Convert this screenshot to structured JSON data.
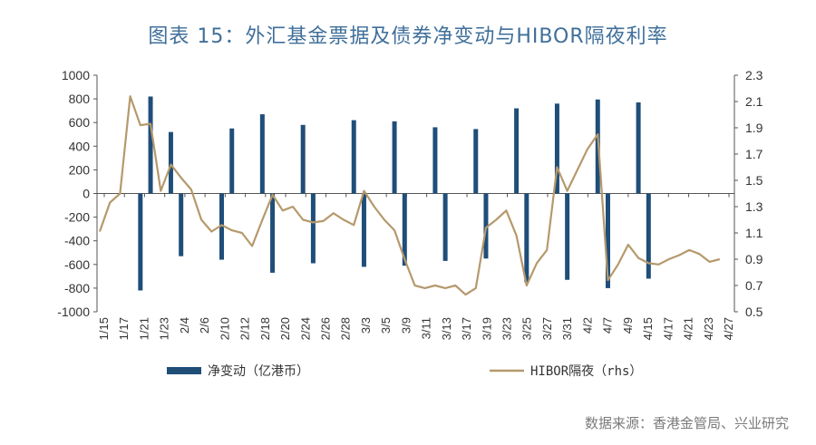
{
  "title": "图表 15：外汇基金票据及债券净变动与HIBOR隔夜利率",
  "source": "数据来源：香港金管局、兴业研究",
  "colors": {
    "bar": "#1f4e79",
    "line": "#b5996c",
    "title": "#3f6f9a"
  },
  "chart_data": {
    "type": "bar+line",
    "left_axis": {
      "ylim": [
        -1000,
        1000
      ],
      "ticks": [
        "1000",
        "800",
        "600",
        "400",
        "200",
        "0",
        "-200",
        "-400",
        "-600",
        "-800",
        "-1000"
      ]
    },
    "right_axis": {
      "ylim": [
        0.5,
        2.3
      ],
      "ticks": [
        "2.3",
        "2.1",
        "1.9",
        "1.7",
        "1.5",
        "1.3",
        "1.1",
        "0.9",
        "0.7",
        "0.5"
      ]
    },
    "x_ticks": [
      "1/15",
      "1/17",
      "1/21",
      "1/23",
      "2/4",
      "2/6",
      "2/10",
      "2/12",
      "2/18",
      "2/20",
      "2/24",
      "2/26",
      "2/28",
      "3/3",
      "3/5",
      "3/9",
      "3/11",
      "3/13",
      "3/17",
      "3/19",
      "3/23",
      "3/25",
      "3/27",
      "3/31",
      "4/2",
      "4/7",
      "4/9",
      "4/15",
      "4/17",
      "4/21",
      "4/23",
      "4/27"
    ],
    "x_range": [
      0,
      62
    ],
    "series": [
      {
        "name": "净变动（亿港币）",
        "type": "bar",
        "points": [
          [
            4,
            -820
          ],
          [
            5,
            820
          ],
          [
            7,
            520
          ],
          [
            8,
            -530
          ],
          [
            12,
            -560
          ],
          [
            13,
            550
          ],
          [
            16,
            670
          ],
          [
            17,
            -670
          ],
          [
            20,
            580
          ],
          [
            21,
            -590
          ],
          [
            25,
            620
          ],
          [
            26,
            -620
          ],
          [
            29,
            610
          ],
          [
            30,
            -610
          ],
          [
            33,
            560
          ],
          [
            34,
            -570
          ],
          [
            37,
            545
          ],
          [
            38,
            -550
          ],
          [
            41,
            720
          ],
          [
            42,
            -750
          ],
          [
            45,
            760
          ],
          [
            46,
            -730
          ],
          [
            49,
            795
          ],
          [
            50,
            -800
          ],
          [
            53,
            770
          ],
          [
            54,
            -720
          ]
        ]
      },
      {
        "name": "HIBOR隔夜（rhs）",
        "type": "line",
        "points": [
          [
            0,
            1.11
          ],
          [
            1,
            1.33
          ],
          [
            2,
            1.4
          ],
          [
            3,
            2.14
          ],
          [
            4,
            1.92
          ],
          [
            5,
            1.93
          ],
          [
            6,
            1.42
          ],
          [
            7,
            1.62
          ],
          [
            8,
            1.52
          ],
          [
            9,
            1.43
          ],
          [
            10,
            1.2
          ],
          [
            11,
            1.11
          ],
          [
            12,
            1.16
          ],
          [
            13,
            1.12
          ],
          [
            14,
            1.1
          ],
          [
            15,
            1.0
          ],
          [
            16,
            1.2
          ],
          [
            17,
            1.39
          ],
          [
            18,
            1.27
          ],
          [
            19,
            1.3
          ],
          [
            20,
            1.2
          ],
          [
            21,
            1.18
          ],
          [
            22,
            1.19
          ],
          [
            23,
            1.25
          ],
          [
            24,
            1.2
          ],
          [
            25,
            1.16
          ],
          [
            26,
            1.42
          ],
          [
            27,
            1.3
          ],
          [
            28,
            1.2
          ],
          [
            29,
            1.12
          ],
          [
            30,
            0.9
          ],
          [
            31,
            0.7
          ],
          [
            32,
            0.68
          ],
          [
            33,
            0.7
          ],
          [
            34,
            0.68
          ],
          [
            35,
            0.7
          ],
          [
            36,
            0.63
          ],
          [
            37,
            0.68
          ],
          [
            38,
            1.14
          ],
          [
            39,
            1.2
          ],
          [
            40,
            1.27
          ],
          [
            41,
            1.08
          ],
          [
            42,
            0.7
          ],
          [
            43,
            0.87
          ],
          [
            44,
            0.97
          ],
          [
            45,
            1.6
          ],
          [
            46,
            1.42
          ],
          [
            47,
            1.58
          ],
          [
            48,
            1.74
          ],
          [
            49,
            1.85
          ],
          [
            50,
            0.74
          ],
          [
            51,
            0.86
          ],
          [
            52,
            1.01
          ],
          [
            53,
            0.91
          ],
          [
            54,
            0.87
          ],
          [
            55,
            0.86
          ],
          [
            56,
            0.9
          ],
          [
            57,
            0.93
          ],
          [
            58,
            0.97
          ],
          [
            59,
            0.94
          ],
          [
            60,
            0.88
          ],
          [
            61,
            0.9
          ]
        ]
      }
    ],
    "legend": {
      "position": "bottom",
      "items": [
        "净变动（亿港币）",
        "HIBOR隔夜（rhs）"
      ]
    }
  }
}
